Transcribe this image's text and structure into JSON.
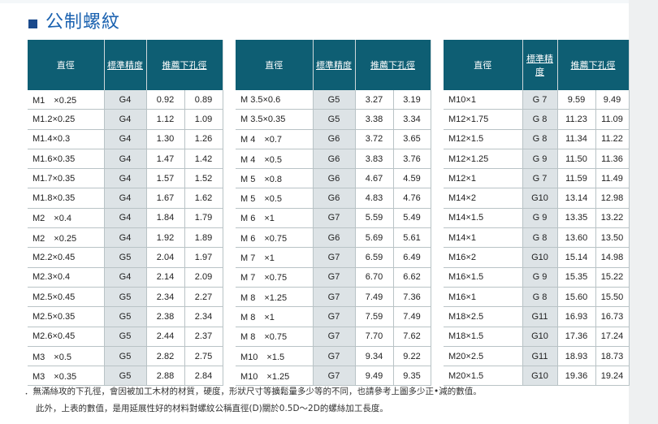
{
  "page": {
    "title": "公制螺紋",
    "notes": [
      "．無滿絲攻的下孔徑，會因被加工木材的材質，硬度，形狀尺寸等擴鬆量多少等的不同，也請參考上圖多少正•減的數值。",
      "此外，上表的數值，是用延展性好的材料對螺紋公稱直徑(D)關於0.5D～2D的螺絲加工長度。"
    ]
  },
  "headers": {
    "size": "直徑",
    "grade": "標準精度",
    "drill": "推薦下孔徑"
  },
  "tables": [
    {
      "rows": [
        {
          "size": "M1　×0.25",
          "grade": "G4",
          "d1": "0.92",
          "d2": "0.89"
        },
        {
          "size": "M1.2×0.25",
          "grade": "G4",
          "d1": "1.12",
          "d2": "1.09"
        },
        {
          "size": "M1.4×0.3",
          "grade": "G4",
          "d1": "1.30",
          "d2": "1.26"
        },
        {
          "size": "M1.6×0.35",
          "grade": "G4",
          "d1": "1.47",
          "d2": "1.42"
        },
        {
          "size": "M1.7×0.35",
          "grade": "G4",
          "d1": "1.57",
          "d2": "1.52"
        },
        {
          "size": "M1.8×0.35",
          "grade": "G4",
          "d1": "1.67",
          "d2": "1.62"
        },
        {
          "size": "M2　×0.4",
          "grade": "G4",
          "d1": "1.84",
          "d2": "1.79"
        },
        {
          "size": "M2　×0.25",
          "grade": "G4",
          "d1": "1.92",
          "d2": "1.89"
        },
        {
          "size": "M2.2×0.45",
          "grade": "G5",
          "d1": "2.04",
          "d2": "1.97"
        },
        {
          "size": "M2.3×0.4",
          "grade": "G4",
          "d1": "2.14",
          "d2": "2.09"
        },
        {
          "size": "M2.5×0.45",
          "grade": "G5",
          "d1": "2.34",
          "d2": "2.27"
        },
        {
          "size": "M2.5×0.35",
          "grade": "G5",
          "d1": "2.38",
          "d2": "2.34"
        },
        {
          "size": "M2.6×0.45",
          "grade": "G5",
          "d1": "2.44",
          "d2": "2.37"
        },
        {
          "size": "M3　×0.5",
          "grade": "G5",
          "d1": "2.82",
          "d2": "2.75"
        },
        {
          "size": "M3　×0.35",
          "grade": "G5",
          "d1": "2.88",
          "d2": "2.84"
        }
      ]
    },
    {
      "rows": [
        {
          "size": "M 3.5×0.6",
          "grade": "G5",
          "d1": "3.27",
          "d2": "3.19"
        },
        {
          "size": "M 3.5×0.35",
          "grade": "G5",
          "d1": "3.38",
          "d2": "3.34"
        },
        {
          "size": "M 4　×0.7",
          "grade": "G6",
          "d1": "3.72",
          "d2": "3.65"
        },
        {
          "size": "M 4　×0.5",
          "grade": "G6",
          "d1": "3.83",
          "d2": "3.76"
        },
        {
          "size": "M 5　×0.8",
          "grade": "G6",
          "d1": "4.67",
          "d2": "4.59"
        },
        {
          "size": "M 5　×0.5",
          "grade": "G6",
          "d1": "4.83",
          "d2": "4.76"
        },
        {
          "size": "M 6　×1",
          "grade": "G7",
          "d1": "5.59",
          "d2": "5.49"
        },
        {
          "size": "M 6　×0.75",
          "grade": "G6",
          "d1": "5.69",
          "d2": "5.61"
        },
        {
          "size": "M 7　×1",
          "grade": "G7",
          "d1": "6.59",
          "d2": "6.49"
        },
        {
          "size": "M 7　×0.75",
          "grade": "G7",
          "d1": "6.70",
          "d2": "6.62"
        },
        {
          "size": "M 8　×1.25",
          "grade": "G7",
          "d1": "7.49",
          "d2": "7.36"
        },
        {
          "size": "M 8　×1",
          "grade": "G7",
          "d1": "7.59",
          "d2": "7.49"
        },
        {
          "size": "M 8　×0.75",
          "grade": "G7",
          "d1": "7.70",
          "d2": "7.62"
        },
        {
          "size": "M10　×1.5",
          "grade": "G7",
          "d1": "9.34",
          "d2": "9.22"
        },
        {
          "size": "M10　×1.25",
          "grade": "G7",
          "d1": "9.49",
          "d2": "9.35"
        }
      ]
    },
    {
      "rows": [
        {
          "size": "M10×1",
          "grade": "G 7",
          "d1": "9.59",
          "d2": "9.49"
        },
        {
          "size": "M12×1.75",
          "grade": "G 8",
          "d1": "11.23",
          "d2": "11.09"
        },
        {
          "size": "M12×1.5",
          "grade": "G 8",
          "d1": "11.34",
          "d2": "11.22"
        },
        {
          "size": "M12×1.25",
          "grade": "G 9",
          "d1": "11.50",
          "d2": "11.36"
        },
        {
          "size": "M12×1",
          "grade": "G 7",
          "d1": "11.59",
          "d2": "11.49"
        },
        {
          "size": "M14×2",
          "grade": "G10",
          "d1": "13.14",
          "d2": "12.98"
        },
        {
          "size": "M14×1.5",
          "grade": "G 9",
          "d1": "13.35",
          "d2": "13.22"
        },
        {
          "size": "M14×1",
          "grade": "G 8",
          "d1": "13.60",
          "d2": "13.50"
        },
        {
          "size": "M16×2",
          "grade": "G10",
          "d1": "15.14",
          "d2": "14.98"
        },
        {
          "size": "M16×1.5",
          "grade": "G 9",
          "d1": "15.35",
          "d2": "15.22"
        },
        {
          "size": "M16×1",
          "grade": "G 8",
          "d1": "15.60",
          "d2": "15.50"
        },
        {
          "size": "M18×2.5",
          "grade": "G11",
          "d1": "16.93",
          "d2": "16.73"
        },
        {
          "size": "M18×1.5",
          "grade": "G10",
          "d1": "17.36",
          "d2": "17.24"
        },
        {
          "size": "M20×2.5",
          "grade": "G11",
          "d1": "18.93",
          "d2": "18.73"
        },
        {
          "size": "M20×1.5",
          "grade": "G10",
          "d1": "19.36",
          "d2": "19.24"
        }
      ]
    }
  ]
}
